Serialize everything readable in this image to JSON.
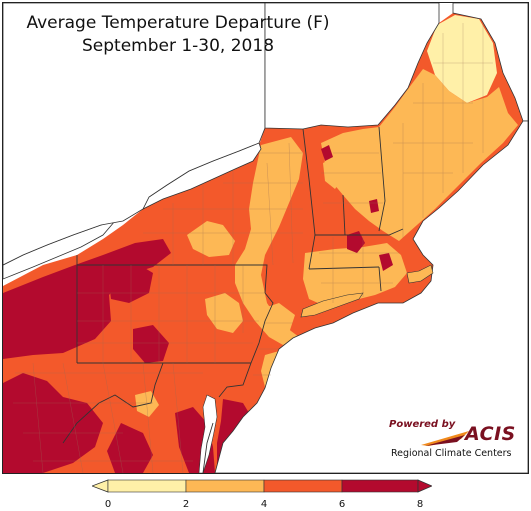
{
  "title_line1": "Average Temperature Departure (F)",
  "title_line2": "September 1-30, 2018",
  "logo": {
    "powered_by": "Powered by",
    "name": "ACIS",
    "subtitle": "Regional Climate Centers"
  },
  "legend": {
    "ticks": [
      "0",
      "2",
      "4",
      "6",
      "8"
    ],
    "classes": [
      {
        "range": "0 to 2",
        "color": "#fff0a8"
      },
      {
        "range": "2 to 4",
        "color": "#fdb855"
      },
      {
        "range": "4 to 6",
        "color": "#f3592b"
      },
      {
        "range": "6 to 8",
        "color": "#b30a2e"
      }
    ]
  },
  "colors": {
    "water": "#ffffff",
    "state_border": "#333333",
    "county_line": "#9a6a55"
  }
}
